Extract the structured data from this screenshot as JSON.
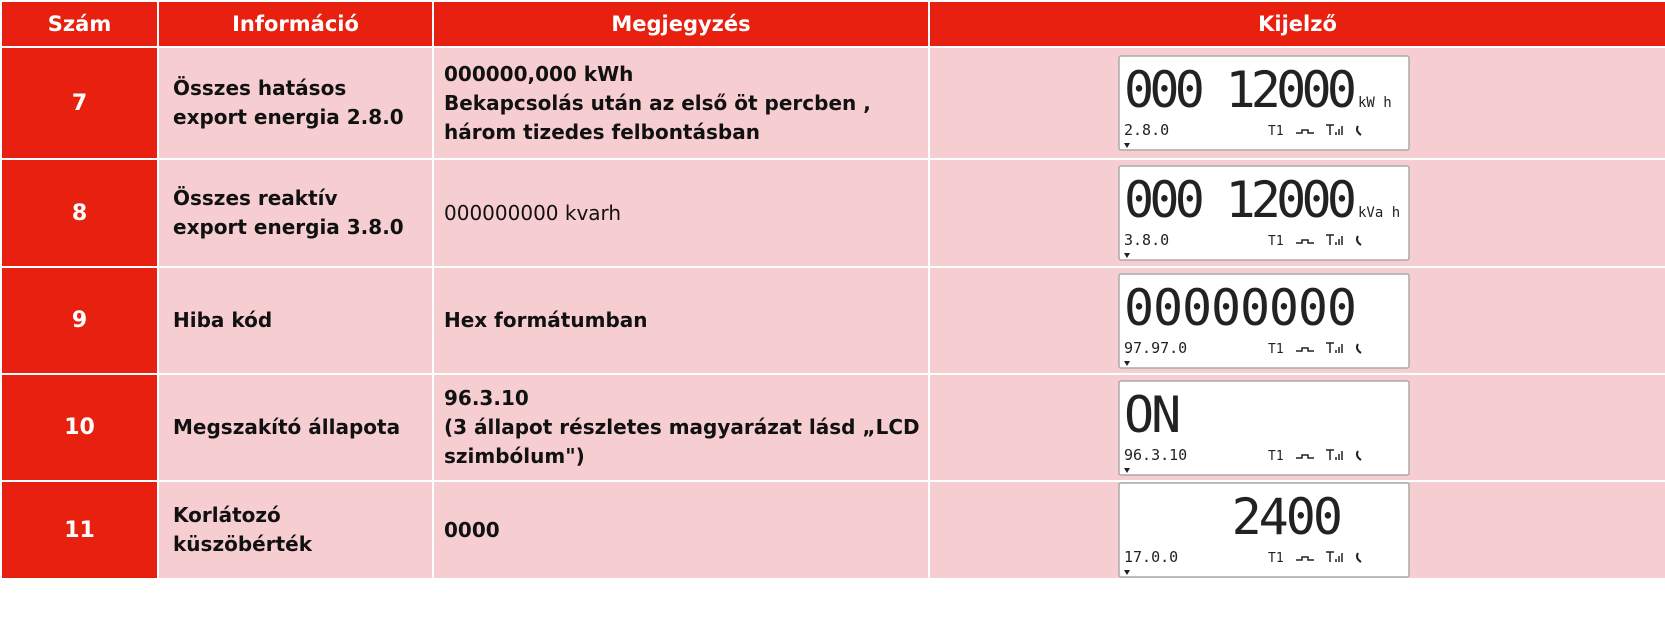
{
  "table": {
    "header": [
      "Szám",
      "Információ",
      "Megjegyzés",
      "Kijelző"
    ],
    "lcd_tariff": "T1",
    "rows": [
      {
        "number": "7",
        "info": [
          "Összes hatásos",
          "export energia 2.8.0"
        ],
        "note": [
          "000000,000 kWh",
          "Bekapcsolás után az első öt percben ,",
          "három tizedes felbontásban"
        ],
        "note_bold": true,
        "lcd": {
          "main": "000 12000",
          "unit": "kW h",
          "code": "2.8.0",
          "align": "left"
        }
      },
      {
        "number": "8",
        "info": [
          "Összes reaktív",
          "export energia 3.8.0"
        ],
        "note": [
          "000000000 kvarh"
        ],
        "note_bold": false,
        "lcd": {
          "main": "000 12000",
          "unit": "kVa h",
          "code": "3.8.0",
          "align": "left"
        }
      },
      {
        "number": "9",
        "info": [
          "Hiba kód"
        ],
        "note": [
          "Hex formátumban"
        ],
        "note_bold": true,
        "lcd": {
          "main": "00000000",
          "code": "97.97.0",
          "align": "left"
        }
      },
      {
        "number": "10",
        "info": [
          "Megszakító állapota"
        ],
        "note": [
          "96.3.10",
          "(3 állapot részletes magyarázat lásd „LCD",
          "szimbólum\")"
        ],
        "note_bold": true,
        "lcd": {
          "main": "ON",
          "code": "96.3.10",
          "align": "left"
        }
      },
      {
        "number": "11",
        "info": [
          "Korlátozó",
          "küszöbérték"
        ],
        "note": [
          "0000"
        ],
        "note_bold": true,
        "lcd": {
          "main": "2400",
          "code": "17.0.0",
          "align": "right"
        }
      }
    ]
  }
}
